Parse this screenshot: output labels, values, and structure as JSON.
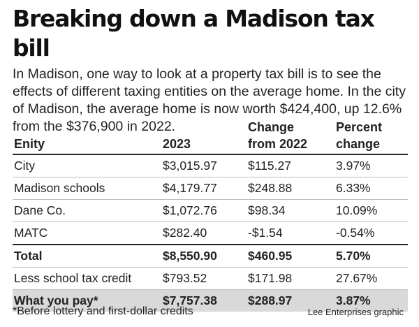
{
  "title": "Breaking down a Madison tax bill",
  "intro": "In Madison, one way to look at a property tax bill is to see the effects of different taxing entities on the average home. In the city of Madison, the average home is now worth $424,400, up 12.6% from the $376,900 in 2022.",
  "table": {
    "headers": {
      "entity": "Enity",
      "year": "2023",
      "change_line1": "Change",
      "change_line2": "from 2022",
      "percent_line1": "Percent",
      "percent_line2": "change"
    },
    "rows": [
      {
        "entity": "City",
        "value": "$3,015.97",
        "change": "$115.27",
        "percent": "3.97%"
      },
      {
        "entity": "Madison schools",
        "value": "$4,179.77",
        "change": "$248.88",
        "percent": "6.33%"
      },
      {
        "entity": "Dane Co.",
        "value": "$1,072.76",
        "change": "$98.34",
        "percent": "10.09%"
      },
      {
        "entity": "MATC",
        "value": "$282.40",
        "change": "-$1.54",
        "percent": "-0.54%"
      },
      {
        "entity": "Total",
        "value": "$8,550.90",
        "change": "$460.95",
        "percent": "5.70%"
      },
      {
        "entity": "Less school tax credit",
        "value": "$793.52",
        "change": "$171.98",
        "percent": "27.67%"
      },
      {
        "entity": "What you pay*",
        "value": "$7,757.38",
        "change": "$288.97",
        "percent": "3.87%"
      }
    ]
  },
  "footnote": "*Before lottery and first-dollar credits",
  "credit": "Lee Enterprises graphic"
}
